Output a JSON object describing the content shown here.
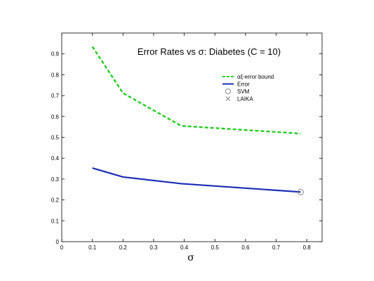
{
  "chart_data": {
    "type": "line",
    "title": "Error Rates vs σ: Diabetes (C = 10)",
    "xlabel": "σ",
    "ylabel": "",
    "xlim": [
      0,
      0.85
    ],
    "ylim": [
      0,
      1.0
    ],
    "xticks": [
      "0",
      "0.1",
      "0.2",
      "0.3",
      "0.4",
      "0.5",
      "0.6",
      "0.7",
      "0.8"
    ],
    "yticks": [
      "0",
      "0.1",
      "0.2",
      "0.3",
      "0.4",
      "0.5",
      "0.6",
      "0.7",
      "0.8",
      "0.9"
    ],
    "grid": false,
    "legend_position": "top-right",
    "series": [
      {
        "name": "αξ-error bound",
        "style": "dashed",
        "color": "#22cc22",
        "x": [
          0.1,
          0.2,
          0.39,
          0.78
        ],
        "y": [
          0.935,
          0.712,
          0.555,
          0.518
        ]
      },
      {
        "name": "Error",
        "style": "solid",
        "color": "#1a2db5",
        "x": [
          0.1,
          0.2,
          0.39,
          0.78
        ],
        "y": [
          0.353,
          0.31,
          0.278,
          0.238
        ]
      }
    ],
    "markers": [
      {
        "name": "SVM",
        "symbol": "circle",
        "color": "#888888",
        "x": [
          0.78
        ],
        "y": [
          0.238
        ]
      },
      {
        "name": "LAIKA",
        "symbol": "cross",
        "color": "#888888",
        "x": [],
        "y": []
      }
    ]
  }
}
